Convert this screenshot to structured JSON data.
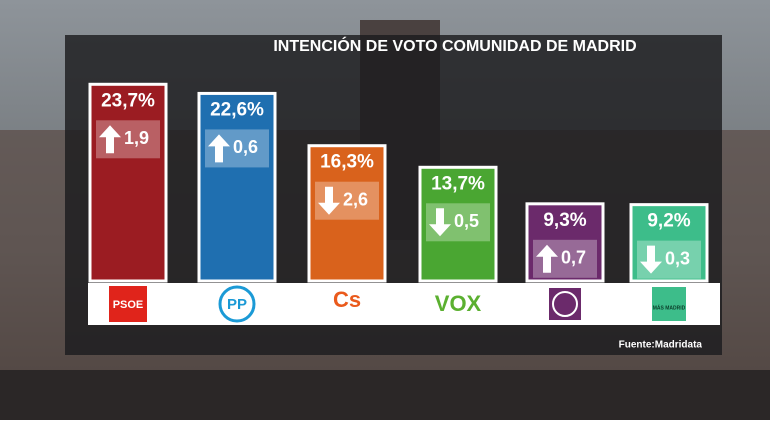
{
  "chart_data": {
    "type": "bar",
    "title": "INTENCIÓN DE VOTO COMUNIDAD DE MADRID",
    "source": "Fuente:Madridata",
    "categories": [
      "PSOE",
      "PP",
      "Cs",
      "VOX",
      null,
      "MÁS MADRID"
    ],
    "values": [
      23.7,
      22.6,
      16.3,
      13.7,
      9.3,
      9.2
    ],
    "value_labels": [
      "23,7%",
      "22,6%",
      "16,3%",
      "13,7%",
      "9,3%",
      "9,2%"
    ],
    "changes": [
      1.9,
      0.6,
      -2.6,
      -0.5,
      0.7,
      -0.3
    ],
    "change_labels": [
      "1,9",
      "0,6",
      "2,6",
      "0,5",
      "0,7",
      "0,3"
    ],
    "colors": [
      "#9b1c22",
      "#1f6fb0",
      "#d9621c",
      "#4aa632",
      "#6b2a6b",
      "#3dbd8a"
    ]
  }
}
